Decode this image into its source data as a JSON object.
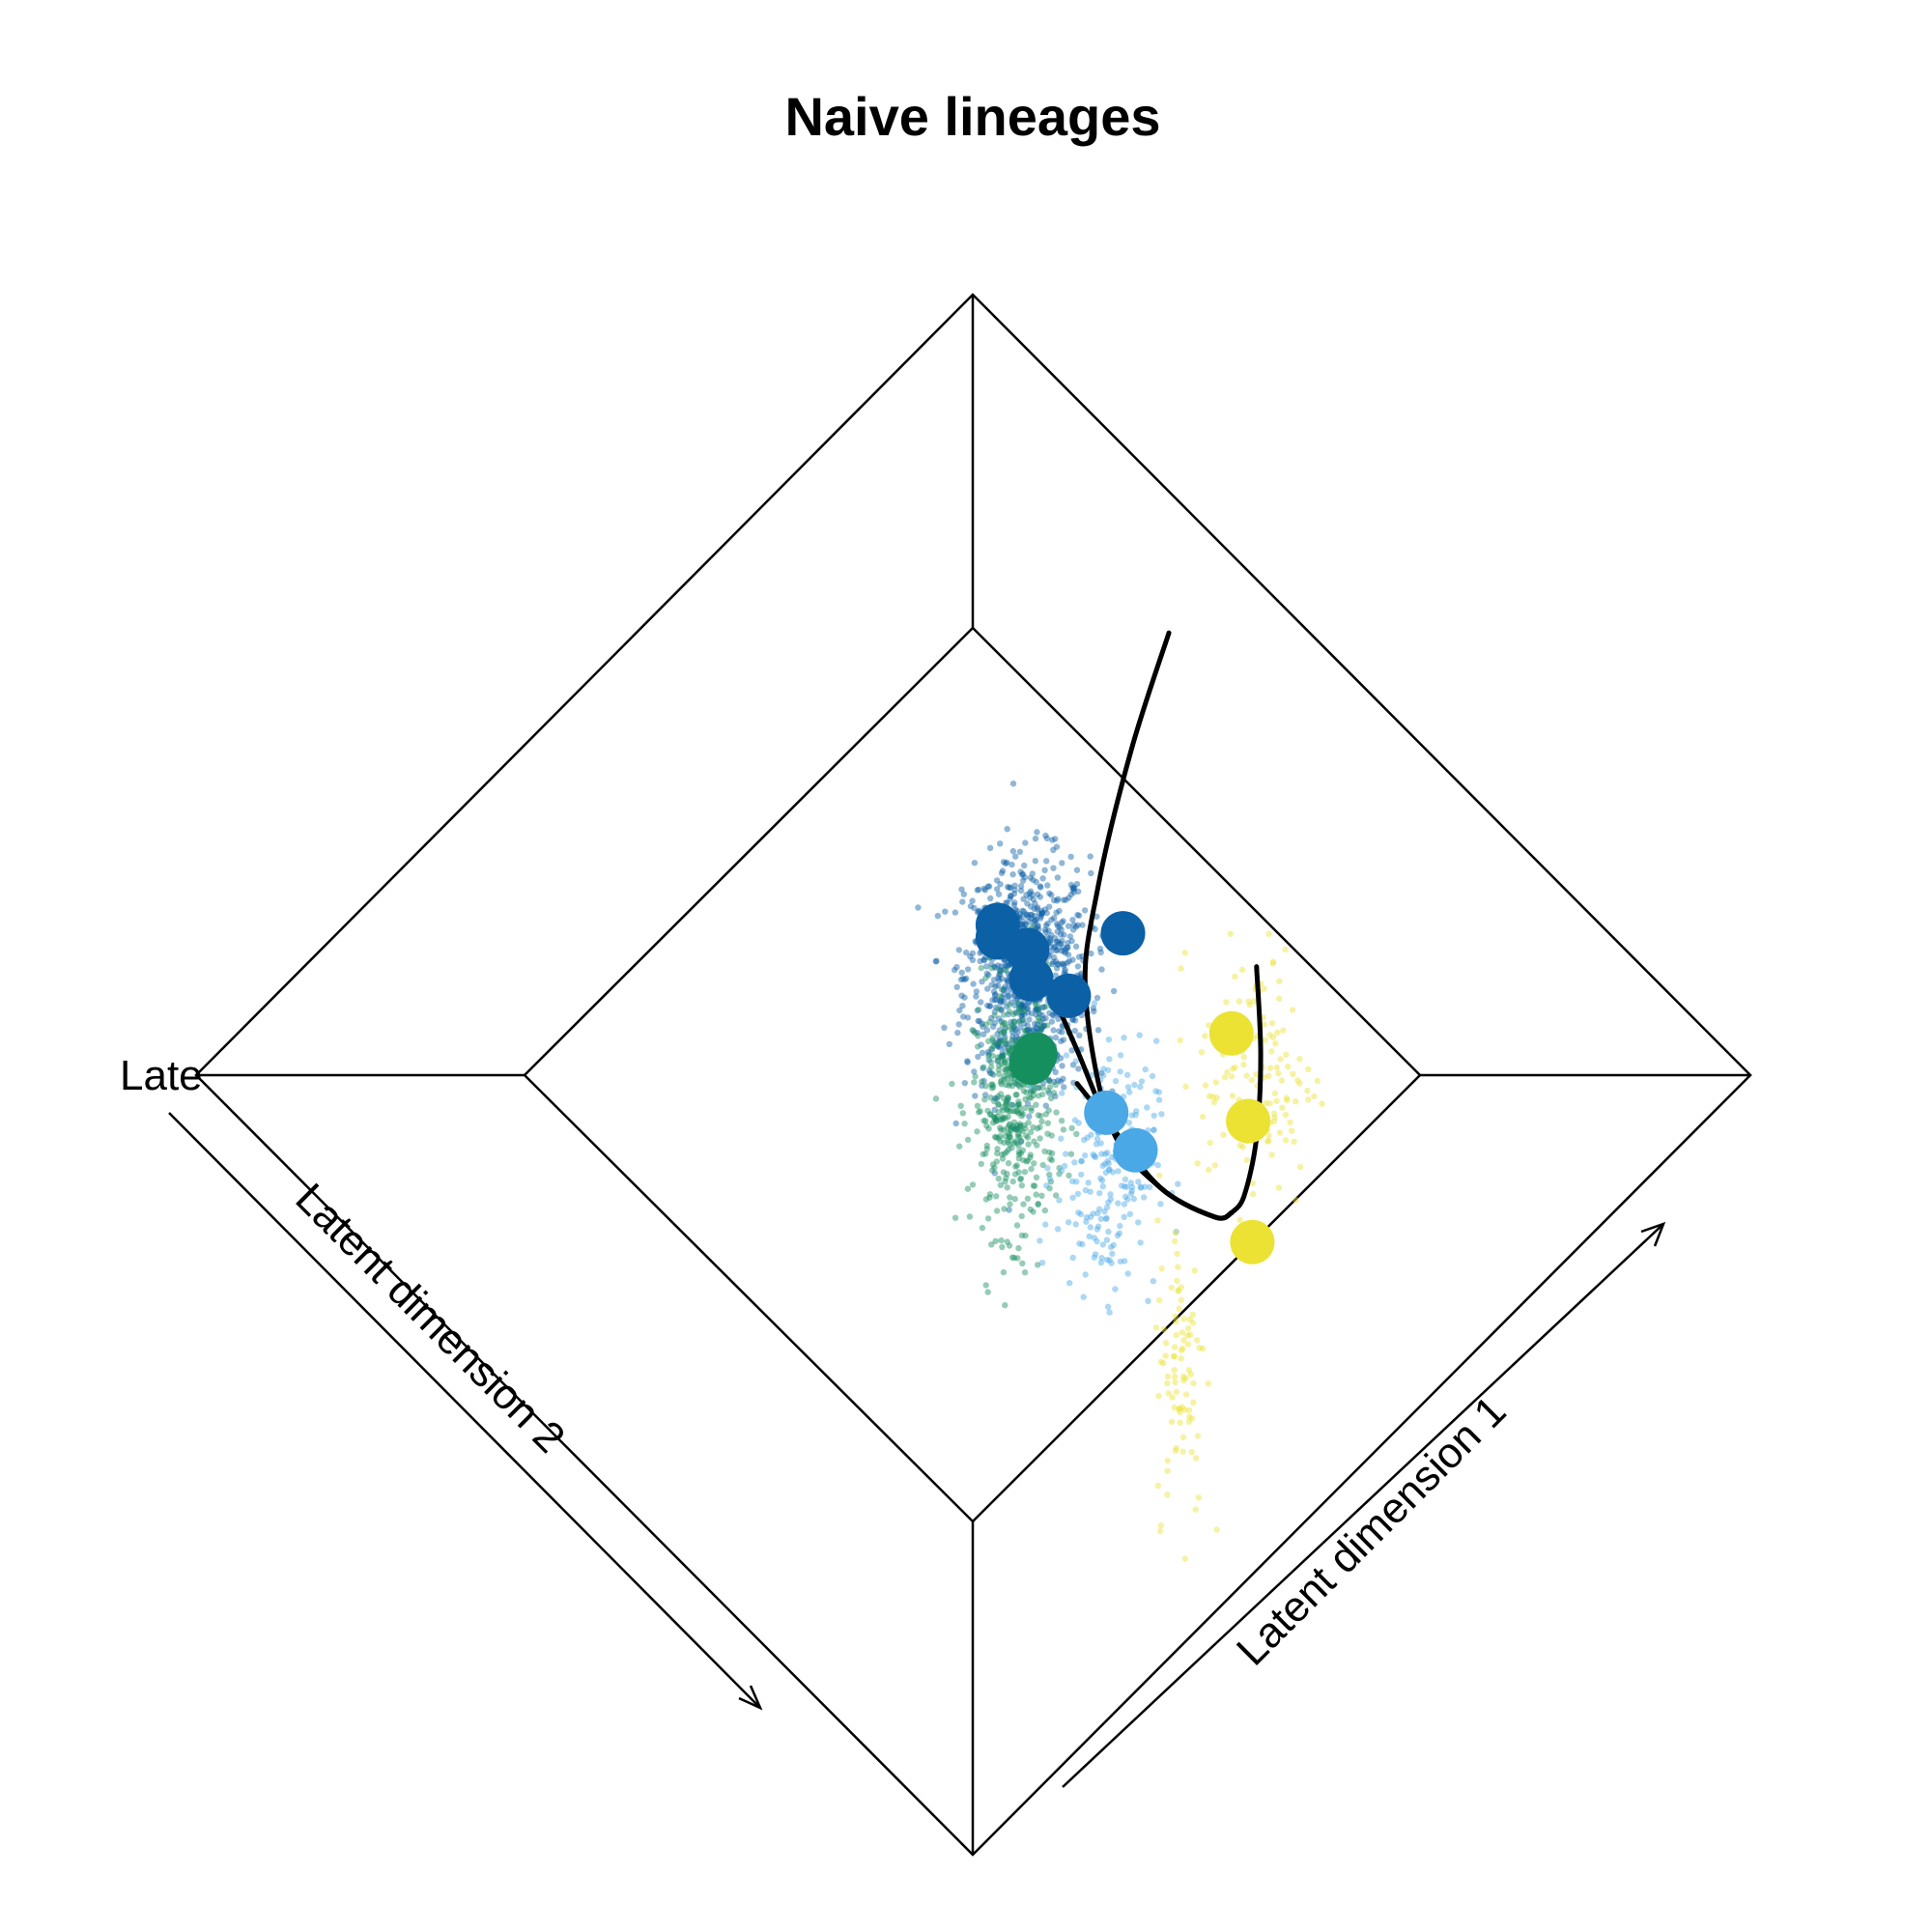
{
  "chart_data": {
    "type": "scatter",
    "title": "Naive lineages",
    "axis_labels": {
      "dim1": "Latent dimension 1",
      "dim2": "Latent dimension 2",
      "dim3_truncated": "Late"
    },
    "grid": false,
    "legend": "none",
    "colors": {
      "darkblue": "#0b60a6",
      "green": "#168f5f",
      "lightblue": "#4aa8e6",
      "yellow": "#ebe233",
      "line": "#000000"
    },
    "cluster_centers": [
      {
        "color": "darkblue",
        "x": 0.06,
        "y": 0.36
      },
      {
        "color": "darkblue",
        "x": 0.06,
        "y": 0.33
      },
      {
        "color": "darkblue",
        "x": 0.13,
        "y": 0.3
      },
      {
        "color": "darkblue",
        "x": 0.14,
        "y": 0.23
      },
      {
        "color": "darkblue",
        "x": 0.23,
        "y": 0.19
      },
      {
        "color": "darkblue",
        "x": 0.36,
        "y": 0.34
      },
      {
        "color": "green",
        "x": 0.14,
        "y": 0.03
      },
      {
        "color": "green",
        "x": 0.15,
        "y": 0.05
      },
      {
        "color": "lightblue",
        "x": 0.32,
        "y": -0.09
      },
      {
        "color": "lightblue",
        "x": 0.39,
        "y": -0.18
      },
      {
        "color": "yellow",
        "x": 0.62,
        "y": 0.1
      },
      {
        "color": "yellow",
        "x": 0.66,
        "y": -0.11
      },
      {
        "color": "yellow",
        "x": 0.67,
        "y": -0.4
      }
    ],
    "point_clouds": [
      {
        "color": "darkblue",
        "count": 900,
        "cx": 0.13,
        "cy": 0.24,
        "sx": 0.15,
        "sy": 0.28
      },
      {
        "color": "green",
        "count": 450,
        "cx": 0.1,
        "cy": -0.08,
        "sx": 0.1,
        "sy": 0.3
      },
      {
        "color": "lightblue",
        "count": 220,
        "cx": 0.32,
        "cy": -0.22,
        "sx": 0.12,
        "sy": 0.3
      },
      {
        "color": "yellow",
        "count": 140,
        "cx": 0.68,
        "cy": 0.0,
        "sx": 0.14,
        "sy": 0.32
      },
      {
        "color": "yellow",
        "count": 90,
        "cx": 0.5,
        "cy": -0.7,
        "sx": 0.06,
        "sy": 0.36
      }
    ],
    "trajectories": [
      {
        "x": [
          0.18,
          0.25,
          0.33,
          0.45,
          0.58,
          0.62
        ],
        "y": [
          0.22,
          0.06,
          -0.12,
          -0.27,
          -0.34,
          -0.33
        ]
      },
      {
        "x": [
          0.25,
          0.33,
          0.45,
          0.58,
          0.62
        ],
        "y": [
          -0.02,
          -0.12,
          -0.27,
          -0.34,
          -0.33
        ]
      },
      {
        "x": [
          0.47,
          0.38,
          0.3,
          0.27,
          0.33,
          0.45,
          0.58,
          0.62
        ],
        "y": [
          1.06,
          0.78,
          0.45,
          0.2,
          -0.12,
          -0.27,
          -0.34,
          -0.33
        ]
      },
      {
        "x": [
          0.68,
          0.69,
          0.68,
          0.65,
          0.62
        ],
        "y": [
          0.26,
          0.05,
          -0.15,
          -0.29,
          -0.33
        ]
      }
    ]
  }
}
